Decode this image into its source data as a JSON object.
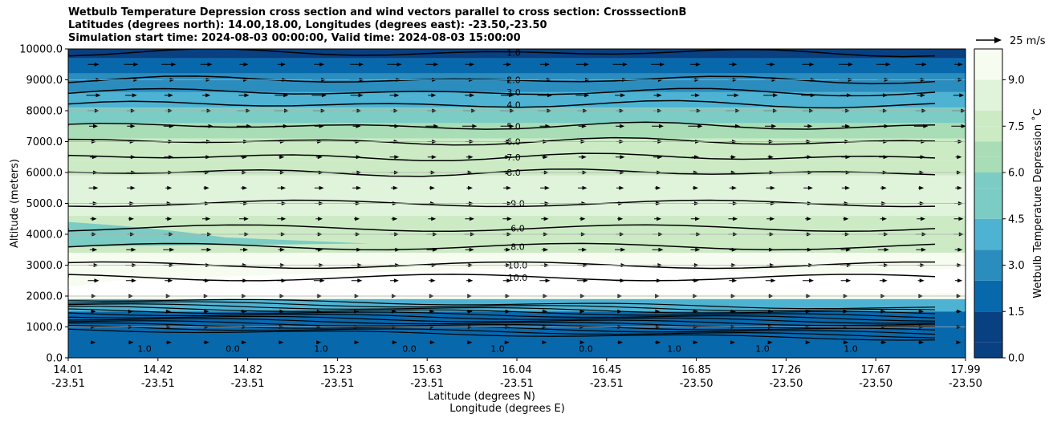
{
  "title_lines": [
    "Wetbulb Temperature Depression cross section and wind vectors parallel to cross section: CrosssectionB",
    "Latitudes (degrees north): 14.00,18.00, Longitudes (degrees east): -23.50,-23.50",
    "Simulation start time: 2024-08-03 00:00:00, Valid time: 2024-08-03 15:00:00"
  ],
  "chart_data": {
    "type": "heatmap",
    "subtype": "filled contour cross section with contour lines and wind vectors",
    "title": "Wetbulb Temperature Depression cross section and wind vectors parallel to cross section: CrosssectionB",
    "ylabel": "Altitude (meters)",
    "xlabel_lines": [
      "Latitude (degrees N)",
      "Longitude (degrees E)"
    ],
    "ylim": [
      0,
      10000
    ],
    "yticks": [
      "0.0",
      "1000.0",
      "2000.0",
      "3000.0",
      "4000.0",
      "5000.0",
      "6000.0",
      "7000.0",
      "8000.0",
      "9000.0",
      "10000.0"
    ],
    "xticks": [
      {
        "lat": "14.01",
        "lon": "-23.51"
      },
      {
        "lat": "14.42",
        "lon": "-23.51"
      },
      {
        "lat": "14.82",
        "lon": "-23.51"
      },
      {
        "lat": "15.23",
        "lon": "-23.51"
      },
      {
        "lat": "15.63",
        "lon": "-23.51"
      },
      {
        "lat": "16.04",
        "lon": "-23.51"
      },
      {
        "lat": "16.45",
        "lon": "-23.51"
      },
      {
        "lat": "16.85",
        "lon": "-23.50"
      },
      {
        "lat": "17.26",
        "lon": "-23.50"
      },
      {
        "lat": "17.67",
        "lon": "-23.50"
      },
      {
        "lat": "17.99",
        "lon": "-23.50"
      }
    ],
    "grid": "horizontal",
    "colorbar": {
      "label": "Wetbulb Temperature Depression $^\\circ$C",
      "label_display": "Wetbulb Temperature Depression ˚C",
      "range": [
        0,
        10
      ],
      "ticks": [
        "0.0",
        "1.5",
        "3.0",
        "4.5",
        "6.0",
        "7.5",
        "9.0"
      ],
      "colormap": "GnBu reversed",
      "colors": [
        "#084081",
        "#0868ac",
        "#2b8cbe",
        "#4eb3d3",
        "#7bccc4",
        "#a8ddb5",
        "#ccebc5",
        "#e0f3db",
        "#f7fcf0"
      ]
    },
    "wind_reference": {
      "label": "25 m/s",
      "speed": 25
    },
    "contour_levels_labeled": [
      "0.0",
      "1.0",
      "2.0",
      "3.0",
      "4.0",
      "5.0",
      "6.0",
      "7.0",
      "8.0",
      "9.0",
      "10.0"
    ],
    "contour_lines": [
      {
        "level": 1.0,
        "alt": 9880
      },
      {
        "level": 2.0,
        "alt": 9000
      },
      {
        "level": 3.0,
        "alt": 8600
      },
      {
        "level": 4.0,
        "alt": 8200
      },
      {
        "level": 5.0,
        "alt": 7500
      },
      {
        "level": 6.0,
        "alt": 7000
      },
      {
        "level": 7.0,
        "alt": 6500
      },
      {
        "level": 8.0,
        "alt": 6000
      }
    ],
    "wind_rows_altitude": [
      9500,
      9000,
      8500,
      8000,
      7500,
      7000,
      6500,
      6000,
      5500,
      5000,
      4500,
      4000,
      3500,
      3000,
      2500,
      2000,
      1500,
      1000,
      500
    ]
  }
}
